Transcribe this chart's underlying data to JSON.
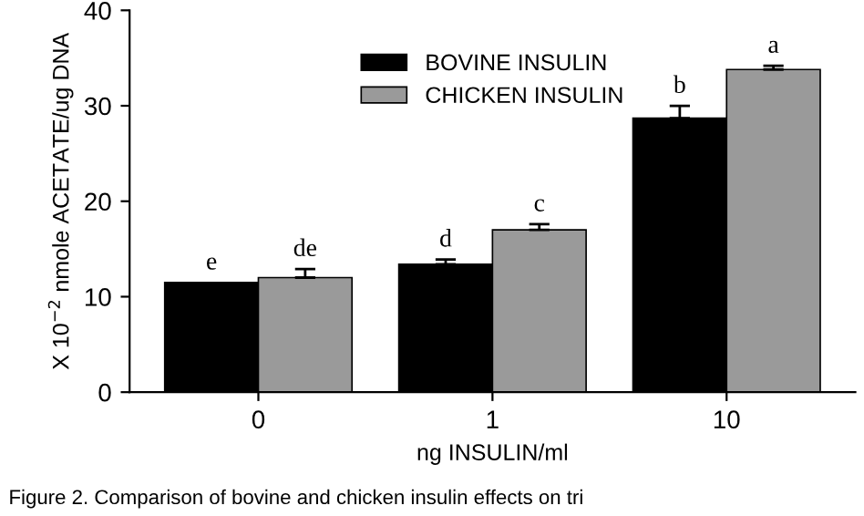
{
  "chart_data": {
    "type": "bar",
    "xlabel": "ng INSULIN/ml",
    "ylabel": "X 10$^{−2}$ nmole ACETATE/ug DNA",
    "categories": [
      "0",
      "1",
      "10"
    ],
    "series": [
      {
        "name": "BOVINE INSULIN",
        "color": "#000000",
        "values": [
          11.5,
          13.4,
          28.7
        ],
        "errors": [
          null,
          0.5,
          1.3
        ]
      },
      {
        "name": "CHICKEN INSULIN",
        "color": "#9a9a9a",
        "values": [
          12.0,
          17.0,
          33.8
        ],
        "errors": [
          0.9,
          0.6,
          0.4
        ]
      }
    ],
    "ylim": [
      0,
      40
    ],
    "yticks": [
      0,
      10,
      20,
      30,
      40
    ],
    "grid": false,
    "legend": "top",
    "annotations": [
      {
        "text": "e",
        "x": "0",
        "y": 11.5
      },
      {
        "text": "de",
        "x": "0",
        "y": 12.9
      },
      {
        "text": "d",
        "x": "1",
        "y": 13.9
      },
      {
        "text": "c",
        "x": "1",
        "y": 17.6
      },
      {
        "text": "b",
        "x": "10",
        "y": 30.0
      },
      {
        "text": "a",
        "x": "10",
        "y": 34.2
      },
      "Figure 2. Comparison of bovine and chicken insulin effects on tri"
    ]
  }
}
